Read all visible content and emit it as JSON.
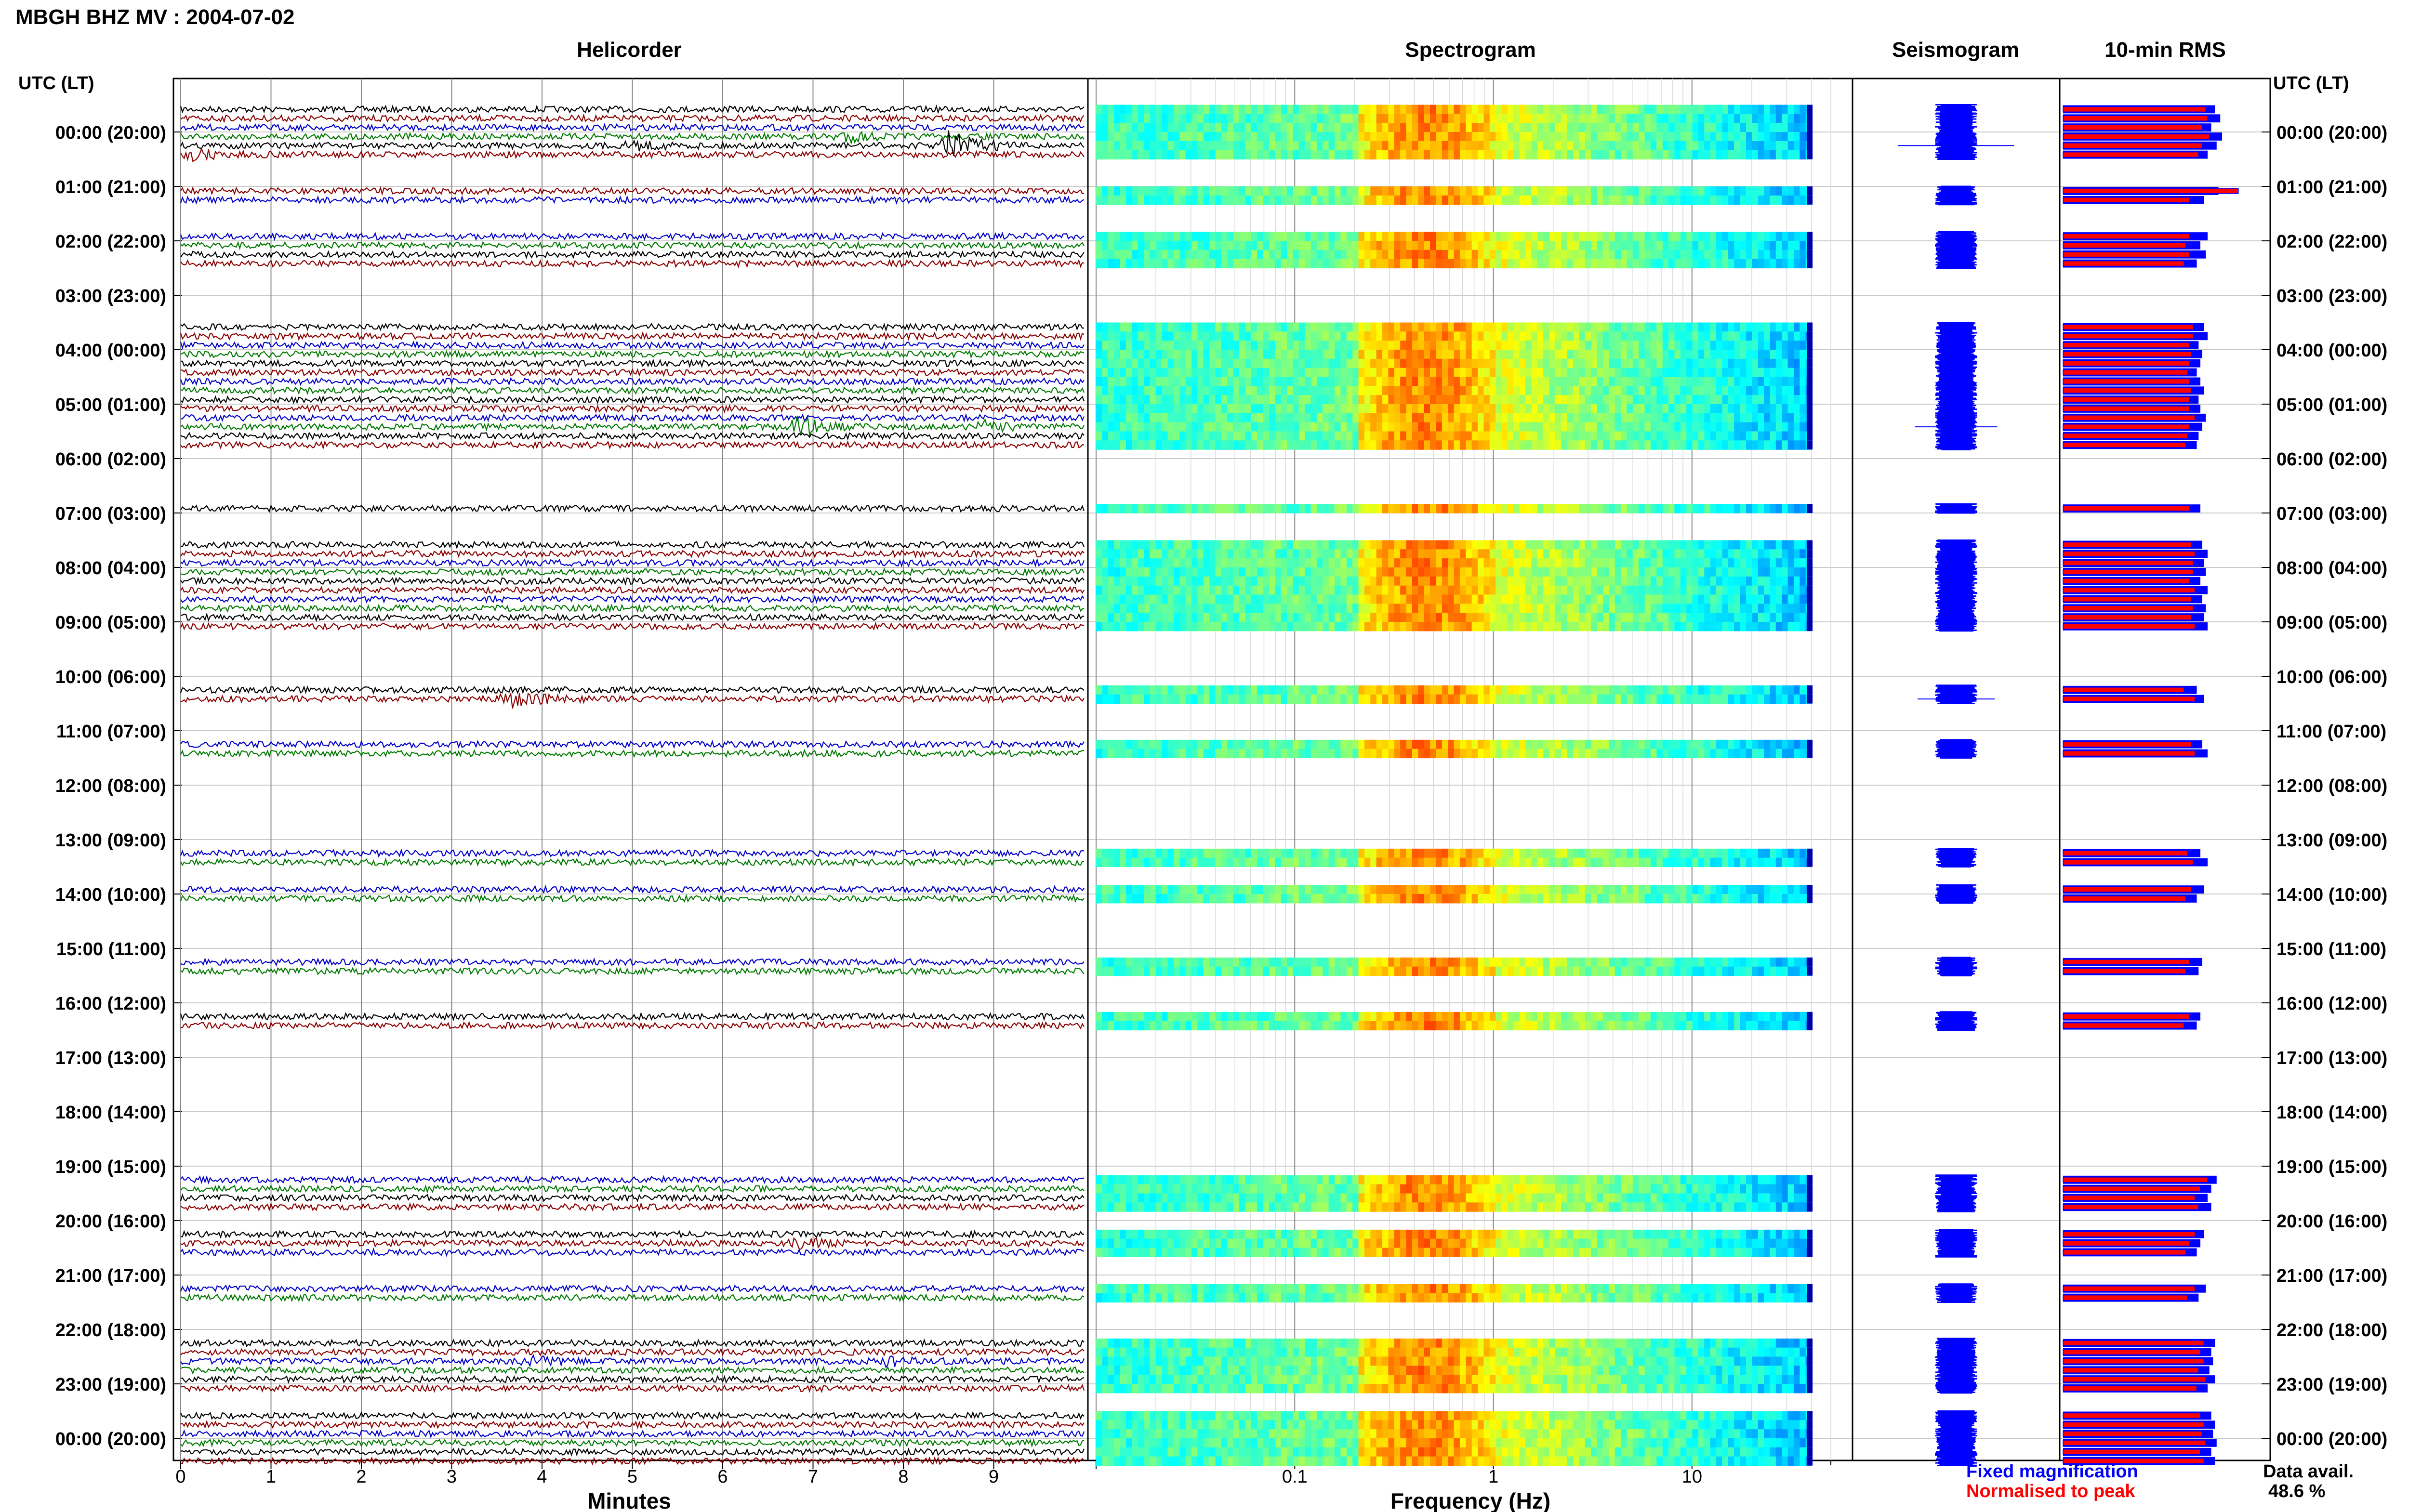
{
  "page": {
    "title": "MBGH BHZ MV : 2004-07-02"
  },
  "panels": {
    "helicorder": "Helicorder",
    "spectrogram": "Spectrogram",
    "seismogram": "Seismogram",
    "rms": "10-min RMS"
  },
  "axes": {
    "left_header": "UTC (LT)",
    "right_header": "UTC (LT)",
    "helicorder_xlabel": "Minutes",
    "spectrogram_xlabel": "Frequency (Hz)"
  },
  "legend": {
    "fixed": "Fixed magnification",
    "normalised": "Normalised to peak",
    "data_avail_label": "Data avail.",
    "data_avail_value": "48.6 %"
  },
  "colors": {
    "trace_cycle": [
      "#000000",
      "#8b0000",
      "#0000cc",
      "#007a00"
    ],
    "fixed_magnification": "#0000ff",
    "normalised_to_peak": "#ff0000"
  },
  "chart_data": {
    "type": "helicorder",
    "hour_labels": [
      "00:00 (20:00)",
      "01:00 (21:00)",
      "02:00 (22:00)",
      "03:00 (23:00)",
      "04:00 (00:00)",
      "05:00 (01:00)",
      "06:00 (02:00)",
      "07:00 (03:00)",
      "08:00 (04:00)",
      "09:00 (05:00)",
      "10:00 (06:00)",
      "11:00 (07:00)",
      "12:00 (08:00)",
      "13:00 (09:00)",
      "14:00 (10:00)",
      "15:00 (11:00)",
      "16:00 (12:00)",
      "17:00 (13:00)",
      "18:00 (14:00)",
      "19:00 (15:00)",
      "20:00 (16:00)",
      "21:00 (17:00)",
      "22:00 (18:00)",
      "23:00 (19:00)",
      "00:00 (20:00)"
    ],
    "minute_ticks": [
      0,
      1,
      2,
      3,
      4,
      5,
      6,
      7,
      8,
      9
    ],
    "minutes_range": [
      0,
      10
    ],
    "frequency_ticks": [
      0.1,
      1,
      10
    ],
    "frequency_tick_labels": [
      "0.1",
      "1",
      "10"
    ],
    "frequency_range_hz": [
      0.01,
      50
    ],
    "frequency_scale": "log",
    "slot_minutes": 10,
    "slots_with_data": [
      0,
      1,
      2,
      3,
      4,
      5,
      9,
      10,
      14,
      15,
      16,
      17,
      24,
      25,
      26,
      27,
      28,
      29,
      30,
      31,
      32,
      33,
      34,
      35,
      36,
      37,
      44,
      48,
      49,
      50,
      51,
      52,
      53,
      54,
      55,
      56,
      57,
      64,
      65,
      70,
      71,
      82,
      83,
      86,
      87,
      94,
      95,
      100,
      101,
      118,
      119,
      120,
      121,
      124,
      125,
      126,
      130,
      131,
      136,
      137,
      138,
      139,
      140,
      141,
      144,
      145,
      146,
      147,
      148,
      149
    ],
    "rms_normalised": {
      "0": 0.84,
      "1": 0.87,
      "2": 0.82,
      "3": 0.88,
      "4": 0.85,
      "5": 0.8,
      "9": 0.86,
      "10": 0.78,
      "14": 0.8,
      "15": 0.76,
      "16": 0.79,
      "17": 0.74,
      "24": 0.78,
      "25": 0.8,
      "26": 0.75,
      "27": 0.77,
      "28": 0.76,
      "29": 0.74,
      "30": 0.76,
      "31": 0.78,
      "32": 0.75,
      "33": 0.76,
      "34": 0.79,
      "35": 0.77,
      "36": 0.75,
      "37": 0.74,
      "44": 0.76,
      "48": 0.77,
      "49": 0.8,
      "50": 0.78,
      "51": 0.79,
      "52": 0.76,
      "53": 0.8,
      "54": 0.77,
      "55": 0.79,
      "56": 0.78,
      "57": 0.8,
      "64": 0.74,
      "65": 0.78,
      "70": 0.77,
      "71": 0.8,
      "82": 0.76,
      "83": 0.8,
      "86": 0.78,
      "87": 0.74,
      "94": 0.77,
      "95": 0.75,
      "100": 0.76,
      "101": 0.74,
      "118": 0.85,
      "119": 0.82,
      "120": 0.8,
      "121": 0.82,
      "124": 0.78,
      "125": 0.76,
      "126": 0.74,
      "130": 0.79,
      "131": 0.75,
      "136": 0.84,
      "137": 0.82,
      "138": 0.83,
      "139": 0.81,
      "140": 0.84,
      "141": 0.8,
      "144": 0.82,
      "145": 0.84,
      "146": 0.83,
      "147": 0.85,
      "148": 0.82,
      "149": 0.84
    },
    "rms_fixed": {
      "0": 0.79,
      "1": 0.8,
      "2": 0.77,
      "3": 0.81,
      "4": 0.77,
      "5": 0.75,
      "9": 0.97,
      "10": 0.7,
      "14": 0.7,
      "15": 0.68,
      "16": 0.7,
      "17": 0.67,
      "24": 0.72,
      "25": 0.72,
      "26": 0.7,
      "27": 0.71,
      "28": 0.7,
      "29": 0.69,
      "30": 0.7,
      "31": 0.71,
      "32": 0.7,
      "33": 0.7,
      "34": 0.73,
      "35": 0.7,
      "36": 0.69,
      "37": 0.68,
      "44": 0.7,
      "48": 0.71,
      "49": 0.73,
      "50": 0.72,
      "51": 0.72,
      "52": 0.7,
      "53": 0.73,
      "54": 0.71,
      "55": 0.72,
      "56": 0.71,
      "57": 0.73,
      "64": 0.67,
      "65": 0.73,
      "70": 0.71,
      "71": 0.73,
      "82": 0.69,
      "83": 0.72,
      "86": 0.71,
      "87": 0.68,
      "94": 0.7,
      "95": 0.68,
      "100": 0.7,
      "101": 0.67,
      "118": 0.8,
      "119": 0.76,
      "120": 0.73,
      "121": 0.75,
      "124": 0.73,
      "125": 0.7,
      "126": 0.68,
      "130": 0.73,
      "131": 0.69,
      "136": 0.78,
      "137": 0.76,
      "138": 0.78,
      "139": 0.75,
      "140": 0.79,
      "141": 0.74,
      "144": 0.76,
      "145": 0.78,
      "146": 0.77,
      "147": 0.79,
      "148": 0.76,
      "149": 0.78
    },
    "events": [
      {
        "slot": 3,
        "minute": 7.3,
        "amplitude": 1.8
      },
      {
        "slot": 4,
        "minute": 8.5,
        "amplitude": 4.5
      },
      {
        "slot": 4,
        "minute": 5.0,
        "amplitude": 1.2
      },
      {
        "slot": 5,
        "minute": 0.1,
        "amplitude": 1.5
      },
      {
        "slot": 35,
        "minute": 6.8,
        "amplitude": 3.2
      },
      {
        "slot": 35,
        "minute": 8.9,
        "amplitude": 1.5
      },
      {
        "slot": 65,
        "minute": 3.6,
        "amplitude": 3.0
      },
      {
        "slot": 125,
        "minute": 6.8,
        "amplitude": 1.4
      },
      {
        "slot": 138,
        "minute": 3.8,
        "amplitude": 1.4
      },
      {
        "slot": 138,
        "minute": 7.8,
        "amplitude": 1.2
      }
    ]
  }
}
